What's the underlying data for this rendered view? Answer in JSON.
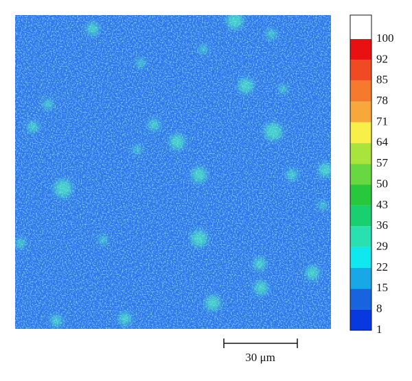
{
  "colorbar": {
    "labels": [
      100,
      92,
      85,
      78,
      71,
      64,
      57,
      50,
      43,
      36,
      29,
      22,
      15,
      8,
      1
    ],
    "colors": [
      "#ffffff",
      "#e81010",
      "#f04a22",
      "#f67a2e",
      "#f8a83a",
      "#f8f048",
      "#a8e43c",
      "#68d840",
      "#28c83c",
      "#18d070",
      "#28e0b0",
      "#10e8f0",
      "#18a8e8",
      "#1864e0",
      "#0838e0"
    ]
  },
  "scale_bar": {
    "label": "30 μm"
  }
}
